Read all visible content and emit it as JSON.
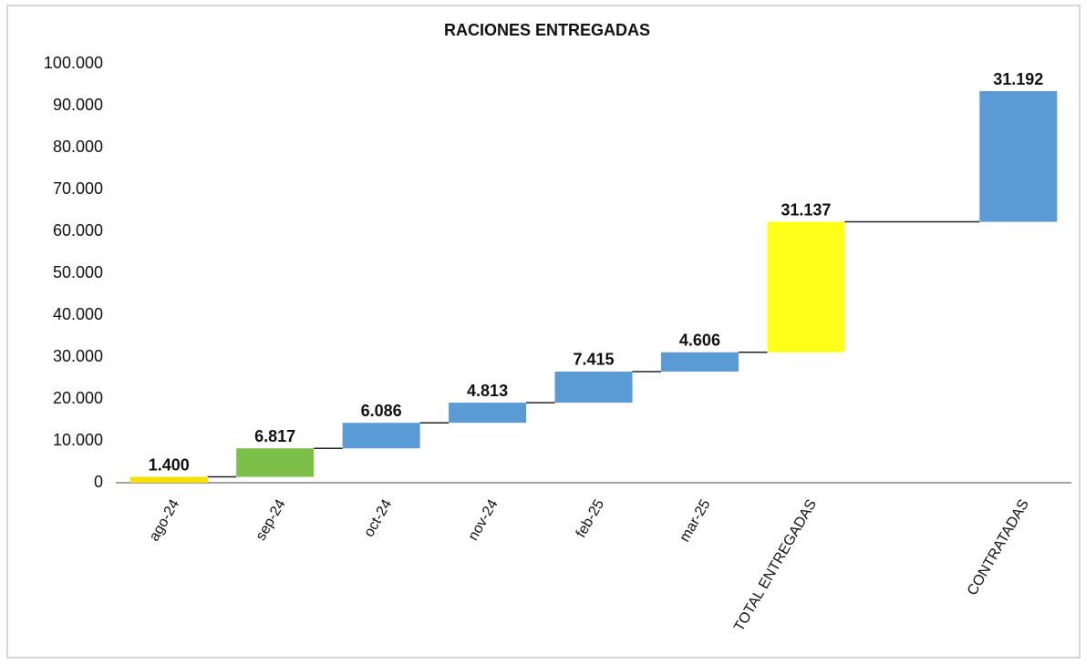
{
  "chart_data": {
    "type": "waterfall",
    "title": "RACIONES ENTREGADAS",
    "categories": [
      "ago-24",
      "sep-24",
      "oct-24",
      "nov-24",
      "feb-25",
      "mar-25",
      "TOTAL ENTREGADAS",
      null,
      "CONTRATADAS"
    ],
    "values": [
      1400,
      6817,
      6086,
      4813,
      7415,
      4606,
      31137,
      null,
      31192
    ],
    "value_labels": [
      "1.400",
      "6.817",
      "6.086",
      "4.813",
      "7.415",
      "4.606",
      "31.137",
      null,
      "31.192"
    ],
    "colors": [
      "#f5e000",
      "#7cc04a",
      "#5b9bd5",
      "#5b9bd5",
      "#5b9bd5",
      "#5b9bd5",
      "#ffff1a",
      null,
      "#5b9bd5"
    ],
    "ylim": [
      0,
      100000
    ],
    "yticks": [
      0,
      {
        "value": 10000,
        "label": "10.000"
      },
      {
        "value": 20000,
        "label": "20.000"
      },
      {
        "value": 30000,
        "label": "30.000"
      },
      {
        "value": 40000,
        "label": "40.000"
      },
      {
        "value": 50000,
        "label": "50.000"
      },
      {
        "value": 60000,
        "label": "60.000"
      },
      {
        "value": 70000,
        "label": "70.000"
      },
      {
        "value": 80000,
        "label": "80.000"
      },
      {
        "value": 90000,
        "label": "90.000"
      },
      {
        "value": 100000,
        "label": "100.000"
      }
    ],
    "grid": false
  }
}
